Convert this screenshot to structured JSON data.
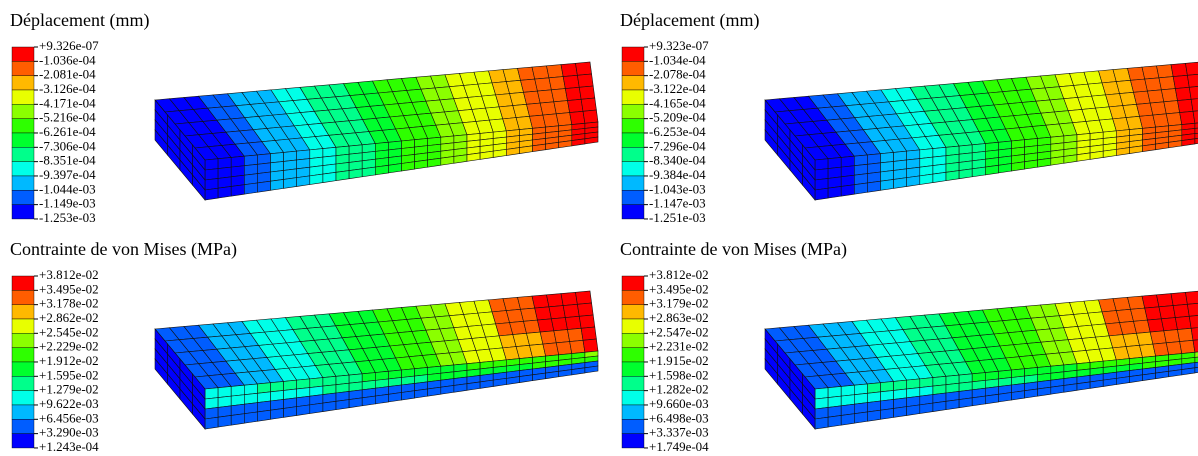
{
  "panels": [
    {
      "title": "Déplacement (mm)",
      "labels": [
        "+9.326e-07",
        "-1.036e-04",
        "-2.081e-04",
        "-3.126e-04",
        "-4.171e-04",
        "-5.216e-04",
        "-6.261e-04",
        "-7.306e-04",
        "-8.351e-04",
        "-9.397e-04",
        "-1.044e-03",
        "-1.149e-03",
        "-1.253e-03"
      ]
    },
    {
      "title": "Déplacement (mm)",
      "labels": [
        "+9.323e-07",
        "-1.034e-04",
        "-2.078e-04",
        "-3.122e-04",
        "-4.165e-04",
        "-5.209e-04",
        "-6.253e-04",
        "-7.296e-04",
        "-8.340e-04",
        "-9.384e-04",
        "-1.043e-03",
        "-1.147e-03",
        "-1.251e-03"
      ]
    },
    {
      "title": "Contrainte de von Mises (MPa)",
      "labels": [
        "+3.812e-02",
        "+3.495e-02",
        "+3.178e-02",
        "+2.862e-02",
        "+2.545e-02",
        "+2.229e-02",
        "+1.912e-02",
        "+1.595e-02",
        "+1.279e-02",
        "+9.622e-03",
        "+6.456e-03",
        "+3.290e-03",
        "+1.243e-04"
      ]
    },
    {
      "title": "Contrainte de von Mises (MPa)",
      "labels": [
        "+3.812e-02",
        "+3.495e-02",
        "+3.179e-02",
        "+2.863e-02",
        "+2.547e-02",
        "+2.231e-02",
        "+1.915e-02",
        "+1.598e-02",
        "+1.282e-02",
        "+9.660e-03",
        "+6.498e-03",
        "+3.337e-03",
        "+1.749e-04"
      ]
    }
  ]
}
